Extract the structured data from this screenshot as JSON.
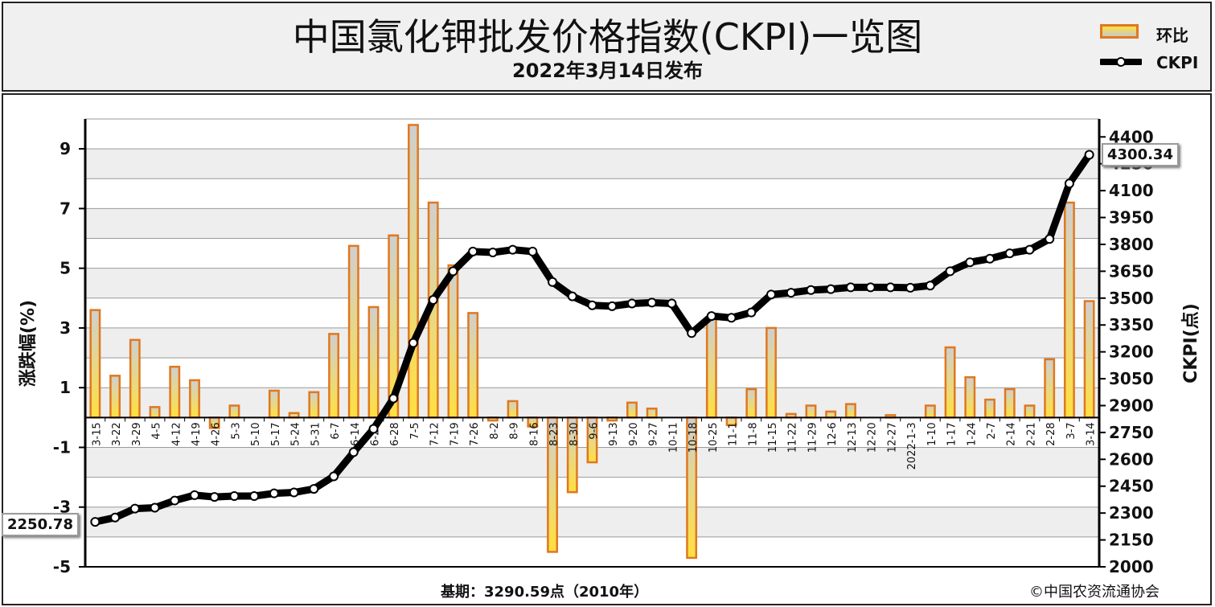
{
  "header": {
    "title": "中国氯化钾批发价格指数(CKPI)一览图",
    "subtitle": "2022年3月14日发布"
  },
  "legend": {
    "bar_label": "环比",
    "line_label": "CKPI"
  },
  "footer": {
    "base_period": "基期：3290.59点（2010年）",
    "copyright": "©中国农资流通协会"
  },
  "callouts": {
    "first_value": "2250.78",
    "last_value": "4300.34"
  },
  "colors": {
    "bar_border": "#e0781f",
    "bar_fill_top": "#ffe040",
    "bar_fill_bottom": "#cfcfcf",
    "line": "#000000",
    "marker_fill": "#ffffff",
    "band": "#eeeeee"
  },
  "chart_data": {
    "type": "bar",
    "categories": [
      "3-15",
      "3-22",
      "3-29",
      "4-5",
      "4-12",
      "4-19",
      "4-26",
      "5-3",
      "5-10",
      "5-17",
      "5-24",
      "5-31",
      "6-7",
      "6-14",
      "6-21",
      "6-28",
      "7-5",
      "7-12",
      "7-19",
      "7-26",
      "8-2",
      "8-9",
      "8-16",
      "8-23",
      "8-30",
      "9-6",
      "9-13",
      "9-20",
      "9-27",
      "10-11",
      "10-18",
      "10-25",
      "11-1",
      "11-8",
      "11-15",
      "11-22",
      "11-29",
      "12-6",
      "12-13",
      "12-20",
      "12-27",
      "2022-1-3",
      "1-10",
      "1-17",
      "1-24",
      "2-7",
      "2-14",
      "2-21",
      "2-28",
      "3-7",
      "3-14"
    ],
    "series": [
      {
        "name": "环比",
        "axis": "left",
        "values": [
          3.6,
          1.4,
          2.6,
          0.35,
          1.7,
          1.25,
          -0.35,
          0.4,
          0,
          0.9,
          0.15,
          0.85,
          2.8,
          5.75,
          3.7,
          6.1,
          9.8,
          7.2,
          5.1,
          3.5,
          -0.1,
          0.55,
          -0.3,
          -4.5,
          -2.5,
          -1.5,
          -0.1,
          0.5,
          0.3,
          0,
          -4.7,
          3.3,
          -0.25,
          0.95,
          3.0,
          0.12,
          0.4,
          0.2,
          0.45,
          0,
          0.08,
          0,
          0.4,
          2.35,
          1.35,
          0.6,
          0.95,
          0.4,
          1.95,
          7.2,
          3.9
        ]
      },
      {
        "name": "CKPI",
        "axis": "right",
        "type": "line",
        "values": [
          2250.78,
          2275,
          2325,
          2330,
          2370,
          2400,
          2390,
          2395,
          2395,
          2410,
          2415,
          2435,
          2505,
          2640,
          2770,
          2940,
          3250,
          3490,
          3650,
          3760,
          3755,
          3770,
          3760,
          3590,
          3510,
          3460,
          3455,
          3470,
          3475,
          3470,
          3305,
          3400,
          3390,
          3420,
          3520,
          3530,
          3545,
          3550,
          3560,
          3560,
          3560,
          3558,
          3570,
          3650,
          3700,
          3720,
          3750,
          3770,
          3830,
          4140,
          4300.34
        ]
      }
    ],
    "ylabel": "涨跌幅(%)",
    "y2label": "CKPI(点)",
    "ylim": [
      -5,
      10
    ],
    "yticks": [
      -5,
      -3,
      -1,
      1,
      3,
      5,
      7,
      9
    ],
    "y2lim": [
      2000,
      4500
    ],
    "y2ticks": [
      2000,
      2150,
      2300,
      2450,
      2600,
      2750,
      2900,
      3050,
      3200,
      3350,
      3500,
      3650,
      3800,
      3950,
      4100,
      4250,
      4400
    ],
    "grid": true,
    "legend_position": "top-right"
  }
}
